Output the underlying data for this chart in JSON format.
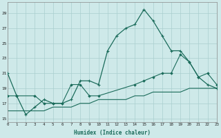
{
  "xlabel": "Humidex (Indice chaleur)",
  "bg_color": "#cee9e9",
  "grid_color": "#aacece",
  "line_color": "#1a6b5a",
  "x_ticks": [
    0,
    1,
    2,
    3,
    4,
    5,
    6,
    7,
    8,
    9,
    10,
    11,
    12,
    13,
    14,
    15,
    16,
    17,
    18,
    19,
    20,
    21,
    22,
    23
  ],
  "y_ticks": [
    15,
    17,
    19,
    21,
    23,
    25,
    27,
    29
  ],
  "xlim": [
    0,
    23
  ],
  "ylim": [
    14.5,
    30.5
  ],
  "series1_x": [
    0,
    1,
    2,
    3,
    4,
    5,
    6,
    7,
    8,
    9,
    10,
    11,
    12,
    13,
    14,
    15,
    16,
    17,
    18,
    19,
    20,
    21,
    22,
    23
  ],
  "series1_y": [
    21,
    18,
    15.5,
    16.5,
    17.5,
    17,
    17,
    17.5,
    20,
    20,
    19.5,
    24,
    26,
    27,
    27.5,
    29.5,
    28,
    26,
    24,
    24,
    22.5,
    20.5,
    19.5,
    19
  ],
  "series2_x": [
    0,
    1,
    3,
    4,
    5,
    6,
    7,
    8,
    9,
    10,
    14,
    15,
    16,
    17,
    18,
    19,
    20,
    21,
    22,
    23
  ],
  "series2_y": [
    18,
    18,
    18,
    17,
    17,
    17,
    19.5,
    19.5,
    18,
    18,
    19.5,
    20,
    20.5,
    21,
    21,
    23.5,
    22.5,
    20.5,
    21,
    19.5
  ],
  "series3_x": [
    0,
    1,
    2,
    3,
    4,
    5,
    6,
    7,
    8,
    9,
    10,
    11,
    12,
    13,
    14,
    15,
    16,
    17,
    18,
    19,
    20,
    21,
    22,
    23
  ],
  "series3_y": [
    16,
    16,
    16,
    16,
    16,
    16.5,
    16.5,
    16.5,
    17,
    17,
    17.5,
    17.5,
    17.5,
    17.5,
    18,
    18,
    18.5,
    18.5,
    18.5,
    18.5,
    19,
    19,
    19,
    19
  ]
}
